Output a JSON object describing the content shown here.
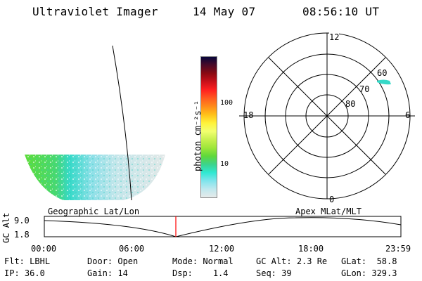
{
  "header": {
    "instrument": "Ultraviolet Imager",
    "date": "14 May 07",
    "time": "08:56:10 UT"
  },
  "colorbar": {
    "unit_label": "photon cm⁻²s⁻¹",
    "ticks": [
      "100",
      "10"
    ],
    "colors": [
      "#06063a",
      "#4b0a28",
      "#8a0a12",
      "#c8101a",
      "#ff2020",
      "#ff5a20",
      "#ff8c1a",
      "#ffc21a",
      "#fff23a",
      "#f2ff70",
      "#c8f050",
      "#9ee63a",
      "#5fd83a",
      "#3cd38c",
      "#30e8d2",
      "#7fe4ec",
      "#bfe8ee",
      "#e6eaea"
    ]
  },
  "polar_plot": {
    "mlt_labels": {
      "top": "12",
      "left": "18",
      "right": "6",
      "bottom": "0"
    },
    "lat_labels": [
      "60",
      "70",
      "80"
    ]
  },
  "orbit_plot": {
    "left_label": "Geographic Lat/Lon",
    "right_label": "Apex MLat/MLT",
    "y_axis_title": "GC Alt",
    "y_ticks": [
      "9.0",
      "1.8"
    ],
    "x_ticks": [
      "00:00",
      "06:00",
      "12:00",
      "18:00",
      "23:59"
    ],
    "marker_color": "#ff0000"
  },
  "info": {
    "row1": [
      {
        "key": "Flt:",
        "value": "LBHL"
      },
      {
        "key": "Door:",
        "value": "Open"
      },
      {
        "key": "Mode:",
        "value": "Normal"
      },
      {
        "key": "GC Alt:",
        "value": "2.3 Re"
      },
      {
        "key": "GLat:",
        "value": "58.8"
      }
    ],
    "row2": [
      {
        "key": "IP:",
        "value": "36.0"
      },
      {
        "key": "Gain:",
        "value": "14"
      },
      {
        "key": "Dsp:",
        "value": "1.4"
      },
      {
        "key": "Seq:",
        "value": "39"
      },
      {
        "key": "GLon:",
        "value": "329.3"
      }
    ]
  }
}
